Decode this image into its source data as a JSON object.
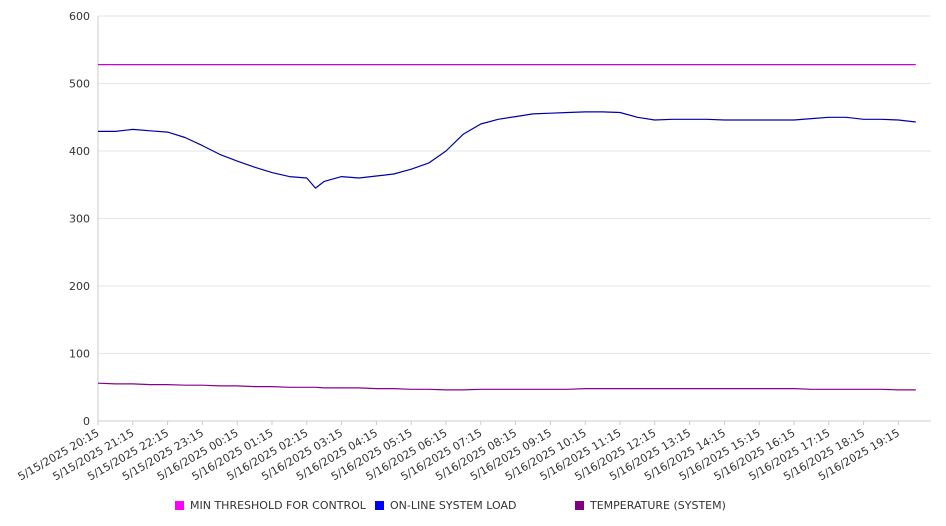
{
  "chart_data": {
    "type": "line",
    "title": "",
    "xlabel": "",
    "ylabel": "",
    "ylim": [
      0,
      600
    ],
    "yticks": [
      0,
      100,
      200,
      300,
      400,
      500,
      600
    ],
    "grid": true,
    "legend_position": "bottom",
    "x_tick_labels": [
      "5/15/2025 20:15",
      "5/15/2025 21:15",
      "5/15/2025 22:15",
      "5/15/2025 23:15",
      "5/16/2025 00:15",
      "5/16/2025 01:15",
      "5/16/2025 02:15",
      "5/16/2025 03:15",
      "5/16/2025 04:15",
      "5/16/2025 05:15",
      "5/16/2025 06:15",
      "5/16/2025 07:15",
      "5/16/2025 08:15",
      "5/16/2025 09:15",
      "5/16/2025 10:15",
      "5/16/2025 11:15",
      "5/16/2025 12:15",
      "5/16/2025 13:15",
      "5/16/2025 14:15",
      "5/16/2025 15:15",
      "5/16/2025 16:15",
      "5/16/2025 17:15",
      "5/16/2025 18:15",
      "5/16/2025 19:15"
    ],
    "x": [
      "5/15/2025 20:15",
      "5/15/2025 20:45",
      "5/15/2025 21:15",
      "5/15/2025 21:45",
      "5/15/2025 22:15",
      "5/15/2025 22:45",
      "5/15/2025 23:15",
      "5/15/2025 23:45",
      "5/16/2025 00:15",
      "5/16/2025 00:45",
      "5/16/2025 01:15",
      "5/16/2025 01:45",
      "5/16/2025 02:15",
      "5/16/2025 02:30",
      "5/16/2025 02:45",
      "5/16/2025 03:15",
      "5/16/2025 03:45",
      "5/16/2025 04:15",
      "5/16/2025 04:45",
      "5/16/2025 05:15",
      "5/16/2025 05:45",
      "5/16/2025 06:15",
      "5/16/2025 06:45",
      "5/16/2025 07:15",
      "5/16/2025 07:45",
      "5/16/2025 08:15",
      "5/16/2025 08:45",
      "5/16/2025 09:15",
      "5/16/2025 09:45",
      "5/16/2025 10:15",
      "5/16/2025 10:45",
      "5/16/2025 11:15",
      "5/16/2025 11:45",
      "5/16/2025 12:15",
      "5/16/2025 12:45",
      "5/16/2025 13:15",
      "5/16/2025 13:45",
      "5/16/2025 14:15",
      "5/16/2025 14:45",
      "5/16/2025 15:15",
      "5/16/2025 15:45",
      "5/16/2025 16:15",
      "5/16/2025 16:45",
      "5/16/2025 17:15",
      "5/16/2025 17:45",
      "5/16/2025 18:15",
      "5/16/2025 18:45",
      "5/16/2025 19:15",
      "5/16/2025 19:45"
    ],
    "series": [
      {
        "name": "MIN THRESHOLD FOR CONTROL",
        "color": "#cc00cc",
        "legend_color": "#ff00ff",
        "values": [
          528,
          528,
          528,
          528,
          528,
          528,
          528,
          528,
          528,
          528,
          528,
          528,
          528,
          528,
          528,
          528,
          528,
          528,
          528,
          528,
          528,
          528,
          528,
          528,
          528,
          528,
          528,
          528,
          528,
          528,
          528,
          528,
          528,
          528,
          528,
          528,
          528,
          528,
          528,
          528,
          528,
          528,
          528,
          528,
          528,
          528,
          528,
          528,
          528
        ]
      },
      {
        "name": "ON-LINE SYSTEM LOAD",
        "color": "#0000aa",
        "legend_color": "#0000ff",
        "values": [
          429,
          429,
          432,
          430,
          428,
          420,
          408,
          395,
          385,
          376,
          368,
          362,
          360,
          345,
          355,
          362,
          360,
          363,
          366,
          373,
          382,
          400,
          425,
          440,
          447,
          451,
          455,
          456,
          457,
          458,
          458,
          457,
          450,
          446,
          447,
          447,
          447,
          446,
          446,
          446,
          446,
          446,
          448,
          450,
          450,
          447,
          447,
          446,
          443
        ]
      },
      {
        "name": "TEMPERATURE (SYSTEM)",
        "color": "#880088",
        "legend_color": "#800080",
        "values": [
          56,
          55,
          55,
          54,
          54,
          53,
          53,
          52,
          52,
          51,
          51,
          50,
          50,
          50,
          49,
          49,
          49,
          48,
          48,
          47,
          47,
          46,
          46,
          47,
          47,
          47,
          47,
          47,
          47,
          48,
          48,
          48,
          48,
          48,
          48,
          48,
          48,
          48,
          48,
          48,
          48,
          48,
          47,
          47,
          47,
          47,
          47,
          46,
          46
        ]
      }
    ]
  }
}
